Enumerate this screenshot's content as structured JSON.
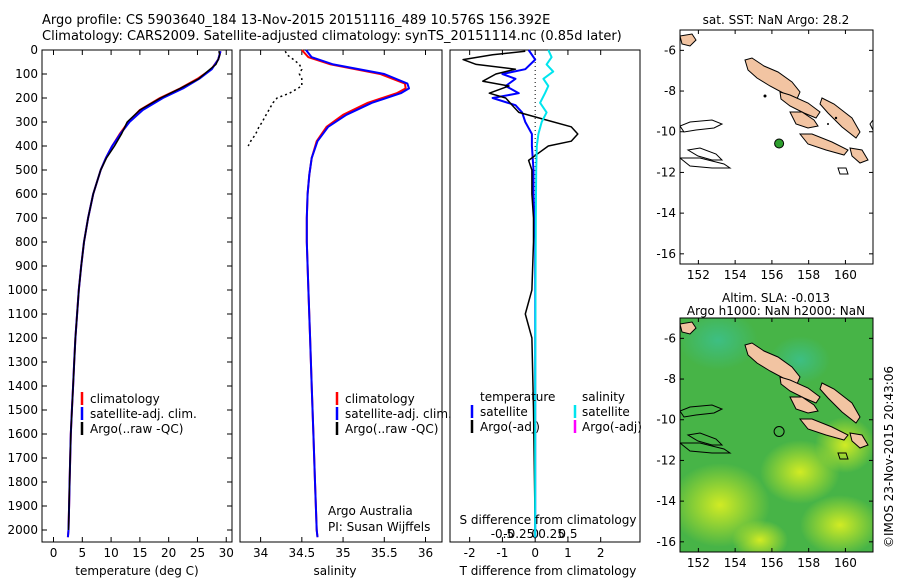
{
  "header": {
    "line1": "Argo profile: CS 5903640_184 13-Nov-2015 20151116_489 10.576S 156.392E",
    "line2": "Climatology: CARS2009. Satellite-adjusted climatology: synTS_20151114.nc (0.85d later)"
  },
  "colors": {
    "climatology": "#ff0000",
    "satellite": "#0000ff",
    "argo": "#000000",
    "salinity_satellite": "#00e5ee",
    "salinity_argo": "#ff00ff",
    "land": "#f2c4a2",
    "argo_marker": "#2e9e2e"
  },
  "chart_data": [
    {
      "id": "temperature",
      "type": "line",
      "xlabel": "temperature (deg C)",
      "ylabel": "",
      "xlim": [
        -2,
        31
      ],
      "ylim": [
        2050,
        0
      ],
      "xticks": [
        0,
        5,
        10,
        15,
        20,
        25,
        30
      ],
      "yticks": [
        0,
        100,
        200,
        300,
        400,
        500,
        600,
        700,
        800,
        900,
        1000,
        1100,
        1200,
        1300,
        1400,
        1500,
        1600,
        1700,
        1800,
        1900,
        2000
      ],
      "legend": [
        "climatology",
        "satellite-adj. clim.",
        "Argo(..raw -QC)"
      ],
      "series": [
        {
          "name": "climatology",
          "color": "#ff0000",
          "y": [
            5,
            40,
            80,
            120,
            160,
            200,
            250,
            300,
            350,
            400,
            450,
            500,
            600,
            700,
            800,
            900,
            1000,
            1100,
            1200,
            1300,
            1400,
            1500,
            1600,
            1700,
            1800,
            1900,
            2000,
            2030
          ],
          "x": [
            29,
            28.6,
            27.4,
            25,
            22,
            18.5,
            15,
            13,
            11.5,
            10.2,
            9.1,
            8.2,
            6.9,
            6,
            5.3,
            4.8,
            4.4,
            4.1,
            3.8,
            3.6,
            3.4,
            3.2,
            3.0,
            2.9,
            2.8,
            2.7,
            2.6,
            2.5
          ]
        },
        {
          "name": "satellite-adj. clim.",
          "color": "#0000ff",
          "y": [
            5,
            40,
            80,
            120,
            160,
            200,
            250,
            300,
            350,
            400,
            450,
            500,
            600,
            700,
            800,
            900,
            1000,
            1100,
            1200,
            1300,
            1400,
            1500,
            1600,
            1700,
            1800,
            1900,
            2000,
            2030
          ],
          "x": [
            29,
            28.6,
            27.5,
            25.3,
            22.5,
            19,
            15.5,
            13.2,
            11.6,
            10.2,
            9.1,
            8.2,
            6.9,
            6,
            5.3,
            4.8,
            4.4,
            4.1,
            3.8,
            3.6,
            3.4,
            3.2,
            3.0,
            2.9,
            2.8,
            2.7,
            2.6,
            2.5
          ]
        },
        {
          "name": "Argo(..raw -QC)",
          "color": "#000000",
          "y": [
            5,
            20,
            40,
            60,
            80,
            120,
            160,
            200,
            250,
            300,
            350,
            400,
            450,
            500,
            600,
            700,
            800,
            900,
            1000,
            1100,
            1200,
            1400,
            1600,
            1800,
            2000
          ],
          "x": [
            28.7,
            28.9,
            28.6,
            28.2,
            27.2,
            25.2,
            22,
            18.6,
            15,
            12.8,
            11.8,
            10.6,
            9.2,
            8.2,
            6.9,
            6,
            5.3,
            4.8,
            4.4,
            4.1,
            3.8,
            3.4,
            3.0,
            2.8,
            2.6
          ]
        }
      ]
    },
    {
      "id": "salinity",
      "type": "line",
      "xlabel": "salinity",
      "ylabel": "",
      "xlim": [
        33.75,
        36.2
      ],
      "ylim": [
        2050,
        0
      ],
      "xticks": [
        34,
        34.5,
        35,
        35.5,
        36
      ],
      "legend": [
        "climatology",
        "satellite-adj. clim.",
        "Argo(..raw -QC)"
      ],
      "annotation": [
        "Argo Australia",
        "PI: Susan Wijffels"
      ],
      "series": [
        {
          "name": "climatology",
          "color": "#ff0000",
          "y": [
            0,
            30,
            60,
            100,
            140,
            160,
            180,
            220,
            270,
            320,
            380,
            450,
            520,
            600,
            700,
            800,
            900,
            1000,
            1200,
            1400,
            1600,
            1800,
            2000,
            2030
          ],
          "x": [
            34.5,
            34.58,
            34.85,
            35.45,
            35.75,
            35.76,
            35.65,
            35.3,
            35.0,
            34.8,
            34.68,
            34.62,
            34.59,
            34.57,
            34.56,
            34.56,
            34.57,
            34.58,
            34.6,
            34.62,
            34.64,
            34.66,
            34.68,
            34.69
          ]
        },
        {
          "name": "satellite-adj. clim.",
          "color": "#0000ff",
          "y": [
            0,
            30,
            60,
            100,
            140,
            160,
            180,
            220,
            270,
            320,
            380,
            450,
            520,
            600,
            700,
            800,
            900,
            1000,
            1200,
            1400,
            1600,
            1800,
            2000,
            2030
          ],
          "x": [
            34.55,
            34.62,
            34.88,
            35.5,
            35.78,
            35.8,
            35.7,
            35.35,
            35.04,
            34.82,
            34.69,
            34.62,
            34.59,
            34.57,
            34.56,
            34.56,
            34.57,
            34.58,
            34.6,
            34.62,
            34.64,
            34.66,
            34.68,
            34.69
          ]
        },
        {
          "name": "Argo(..raw -QC)",
          "color": "#000000",
          "y": [
            5,
            20,
            40,
            60,
            80,
            100,
            120,
            150,
            180,
            200,
            220,
            250,
            280,
            300,
            320,
            350,
            380,
            400
          ],
          "x": [
            34.3,
            34.32,
            34.4,
            34.47,
            34.5,
            34.47,
            34.5,
            34.5,
            34.35,
            34.2,
            34.15,
            34.1,
            34.05,
            34.02,
            33.98,
            33.94,
            33.88,
            33.85
          ]
        }
      ]
    },
    {
      "id": "difference",
      "type": "line",
      "xlabel": "T difference from climatology",
      "xlabel2": "S difference from climatology",
      "xlim": [
        -2.6,
        3.2
      ],
      "ylim": [
        2050,
        0
      ],
      "xticks": [
        -2,
        -1,
        0,
        1,
        2
      ],
      "xticks2": [
        -0.5,
        -0.25,
        0,
        0.25,
        0.5
      ],
      "xticks2_labels": [
        "-0.5",
        "-0.25",
        "0",
        "0.25",
        "0.5"
      ],
      "legend_left_title": "temperature",
      "legend_right_title": "salinity",
      "legend_left": [
        "satellite",
        "Argo(-adj)"
      ],
      "legend_right": [
        "satellite",
        "Argo(-adj)"
      ],
      "series": [
        {
          "name": "temperature satellite",
          "color": "#0000ff",
          "y": [
            0,
            40,
            80,
            100,
            120,
            150,
            180,
            200,
            230,
            260,
            300,
            350,
            400,
            500,
            600,
            800,
            1000,
            1200,
            1500,
            2000,
            2030
          ],
          "x": [
            -0.2,
            0,
            -0.3,
            -1.0,
            -0.6,
            -0.9,
            -0.5,
            -1.3,
            -0.6,
            -0.4,
            -0.3,
            -0.1,
            -0.1,
            -0.05,
            -0.05,
            0,
            0,
            0,
            0,
            0,
            0
          ]
        },
        {
          "name": "temperature Argo(-adj)",
          "color": "#000000",
          "y": [
            5,
            20,
            40,
            60,
            80,
            100,
            130,
            150,
            180,
            200,
            230,
            260,
            290,
            320,
            350,
            380,
            400,
            430,
            460,
            500,
            550,
            600,
            700,
            800,
            1000,
            1100,
            1200,
            1500,
            2000
          ],
          "x": [
            -0.3,
            -1.3,
            -2.2,
            -1.8,
            -0.6,
            -1.2,
            -1.6,
            -0.8,
            -1.4,
            -0.9,
            -0.7,
            -0.5,
            0.3,
            1.1,
            1.3,
            1.1,
            0.4,
            0.1,
            -0.2,
            -0.1,
            -0.1,
            -0.1,
            -0.05,
            -0.05,
            -0.1,
            -0.3,
            -0.1,
            -0.05,
            0
          ]
        },
        {
          "name": "salinity satellite",
          "color": "#00e5ee",
          "y": [
            0,
            30,
            60,
            90,
            120,
            150,
            180,
            220,
            260,
            300,
            350,
            400,
            500,
            700,
            1000,
            1500,
            2000,
            2030
          ],
          "x": [
            0.4,
            0.5,
            0.35,
            0.55,
            0.25,
            0.4,
            0.3,
            0.15,
            0.35,
            0.2,
            0.1,
            0.05,
            0.03,
            0.02,
            0.01,
            0,
            0,
            0
          ]
        }
      ]
    },
    {
      "id": "sst-map",
      "type": "scatter",
      "title": "sat. SST: NaN Argo: 28.2",
      "xlim": [
        151,
        161.5
      ],
      "ylim": [
        -16.5,
        -5
      ],
      "xticks": [
        152,
        154,
        156,
        158,
        160
      ],
      "yticks": [
        -6,
        -8,
        -10,
        -12,
        -14,
        -16
      ],
      "points": [
        {
          "lon": 156.392,
          "lat": -10.576
        }
      ]
    },
    {
      "id": "sla-map",
      "type": "heatmap",
      "title": "Altim. SLA: -0.013",
      "title2": "Argo h1000: NaN h2000: NaN",
      "xlim": [
        151,
        161.5
      ],
      "ylim": [
        -16.5,
        -5
      ],
      "xticks": [
        152,
        154,
        156,
        158,
        160
      ],
      "yticks": [
        -6,
        -8,
        -10,
        -12,
        -14,
        -16
      ],
      "points": [
        {
          "lon": 156.392,
          "lat": -10.576
        }
      ]
    }
  ],
  "watermark": "©IMOS 23-Nov-2015 20:43:06"
}
